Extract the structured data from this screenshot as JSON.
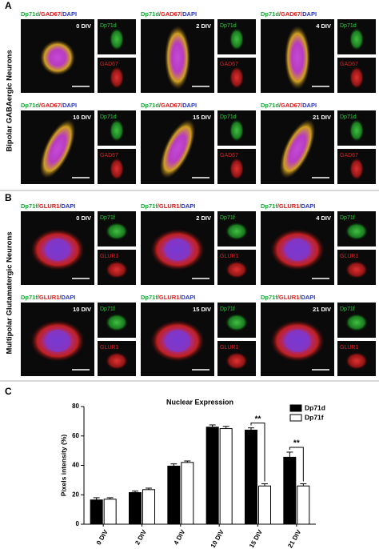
{
  "panels": [
    {
      "letter": "A",
      "side_label": "Bipolar GABAergic Neurons",
      "stain": [
        {
          "text": "Dp71d",
          "color": "#1fa83a"
        },
        {
          "text": "/GAD67/",
          "color": "#e01b1b"
        },
        {
          "text": "DAPI",
          "color": "#2433c8"
        }
      ],
      "channels": [
        {
          "text": "Dp71d",
          "color": "#2ecc40"
        },
        {
          "text": "GAD67",
          "color": "#e02020"
        }
      ],
      "stages": [
        "0 DIV",
        "2 DIV",
        "4 DIV",
        "10 DIV",
        "15 DIV",
        "21 DIV"
      ]
    },
    {
      "letter": "B",
      "side_label": "Multipolar Glutamatergic Neurons",
      "stain": [
        {
          "text": "Dp71f",
          "color": "#1fa83a"
        },
        {
          "text": "/GLUR1/",
          "color": "#e01b1b"
        },
        {
          "text": "DAPI",
          "color": "#2433c8"
        }
      ],
      "channels": [
        {
          "text": "Dp71f",
          "color": "#2ecc40"
        },
        {
          "text": "GLUR1",
          "color": "#e02020"
        }
      ],
      "stages": [
        "0 DIV",
        "2 DIV",
        "4 DIV",
        "10 DIV",
        "15 DIV",
        "21 DIV"
      ]
    }
  ],
  "chart_letter": "C",
  "chart_data": {
    "type": "bar",
    "title": "Nuclear Expression",
    "y_label": "Pixels intensity (%)",
    "categories": [
      "0 DIV",
      "2 DIV",
      "4 DIV",
      "10 DIV",
      "15 DIV",
      "21 DIV"
    ],
    "series": [
      {
        "name": "Dp71d",
        "color": "#000000",
        "values": [
          16.5,
          21.5,
          39.5,
          66,
          64,
          45.5
        ],
        "errors": [
          1.5,
          1,
          1.5,
          1.5,
          1.5,
          3.5
        ]
      },
      {
        "name": "Dp71f",
        "color": "#ffffff",
        "values": [
          17,
          23.5,
          42,
          65,
          26,
          26
        ],
        "errors": [
          1,
          1,
          1,
          1.5,
          1.5,
          1.5
        ]
      }
    ],
    "ylim": [
      0,
      80
    ],
    "yticks": [
      0,
      20,
      40,
      60,
      80
    ],
    "legend": "upper right",
    "annotations": [
      {
        "label": "**",
        "category": "15 DIV"
      },
      {
        "label": "**",
        "category": "21 DIV"
      }
    ]
  }
}
